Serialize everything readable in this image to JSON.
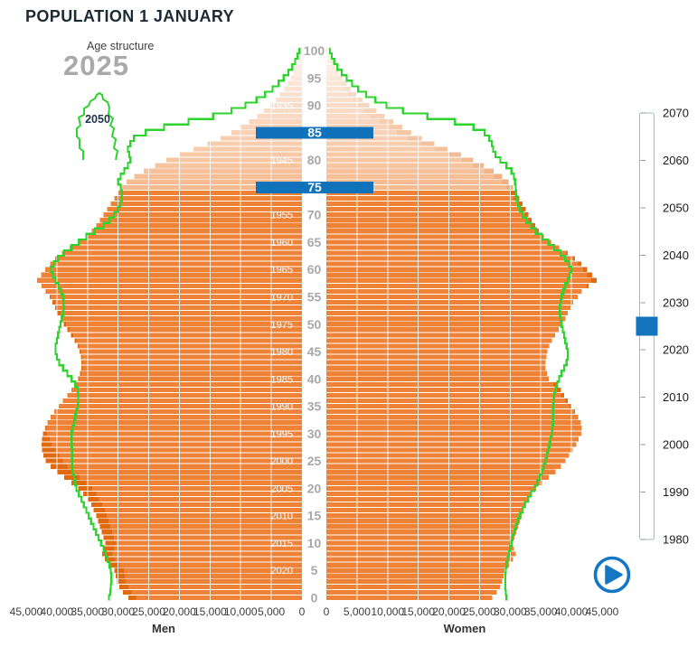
{
  "header": {
    "title": "POPULATION 1 JANUARY",
    "subtitle": "Age structure",
    "year_display": "2025"
  },
  "projection_badge": {
    "label": "2050"
  },
  "axis": {
    "men_label": "Men",
    "women_label": "Women",
    "x_max": 45000,
    "x_tick_values": [
      0,
      5000,
      10000,
      15000,
      20000,
      25000,
      30000,
      35000,
      40000,
      45000
    ],
    "x_tick_labels": [
      "0",
      "5,000",
      "10,000",
      "15,000",
      "20,000",
      "25,000",
      "30,000",
      "35,000",
      "40,000",
      "45,000"
    ],
    "age_min": 0,
    "age_max": 100,
    "age_tick_step": 5
  },
  "age_markers": [
    {
      "age": 85,
      "label": "85"
    },
    {
      "age": 75,
      "label": "75"
    }
  ],
  "birth_year_labels": [
    1935,
    1940,
    1945,
    1950,
    1955,
    1960,
    1965,
    1970,
    1975,
    1980,
    1985,
    1990,
    1995,
    2000,
    2005,
    2010,
    2015,
    2020
  ],
  "slider": {
    "min_year": 1980,
    "max_year": 2070,
    "selected_year": 2025,
    "tick_years": [
      1980,
      1990,
      2000,
      2010,
      2020,
      2030,
      2040,
      2050,
      2060,
      2070
    ]
  },
  "icons": {
    "play": "▶"
  },
  "colors": {
    "bar": "#ee8236",
    "bar_surplus": "#e1690f",
    "projection_outline": "#2fd32f",
    "highlight_blue": "#0f72ba",
    "slider_handle": "#1373bd",
    "play_blue": "#1377c6",
    "title_text": "#1c2b33",
    "muted_year": "#a9a9a9",
    "age_label": "#a8a8a8",
    "axis_text": "#3d3d3d"
  },
  "chart_data": {
    "type": "bar",
    "variant": "population-pyramid",
    "title": "POPULATION 1 JANUARY",
    "age_of_index": "index = single year of age, 0 to 100",
    "xlim": [
      0,
      45000
    ],
    "highlight_ages": [
      85,
      75
    ],
    "legend": "green outline = 2050 projection",
    "series": [
      {
        "name": "Men 2025",
        "values": [
          28300,
          29200,
          29800,
          30200,
          30400,
          30600,
          31400,
          32200,
          32600,
          32300,
          32100,
          32400,
          32700,
          33000,
          33300,
          33600,
          34000,
          34400,
          35000,
          35700,
          36500,
          37600,
          38800,
          40000,
          41000,
          41800,
          42200,
          42400,
          42500,
          42400,
          42300,
          41900,
          41500,
          41000,
          40400,
          39700,
          39000,
          38300,
          37600,
          37000,
          36500,
          36200,
          36000,
          36000,
          36100,
          36300,
          36600,
          37100,
          37700,
          38300,
          38900,
          39400,
          39900,
          40300,
          40700,
          41200,
          41800,
          42500,
          43200,
          42600,
          41900,
          41100,
          40300,
          39200,
          37900,
          36500,
          35200,
          34300,
          33600,
          33000,
          32400,
          31800,
          31200,
          30600,
          30000,
          29400,
          28600,
          27400,
          25800,
          24000,
          22100,
          20000,
          17700,
          15400,
          13300,
          11500,
          10000,
          8600,
          7300,
          6200,
          5200,
          4300,
          3600,
          2900,
          2300,
          1800,
          1400,
          1000,
          700,
          500,
          300
        ]
      },
      {
        "name": "Women 2025",
        "values": [
          27100,
          27800,
          28300,
          28700,
          28900,
          29100,
          29800,
          30500,
          30900,
          30600,
          30400,
          30700,
          31000,
          31300,
          31600,
          31900,
          32200,
          32600,
          33100,
          33600,
          34200,
          35200,
          36300,
          37400,
          38300,
          39000,
          39600,
          40200,
          40800,
          41200,
          41600,
          41700,
          41500,
          41100,
          40600,
          40000,
          39400,
          38800,
          38300,
          37800,
          36300,
          36000,
          35800,
          35800,
          35900,
          36100,
          36400,
          36800,
          37300,
          37900,
          38500,
          39000,
          39400,
          39800,
          40300,
          41000,
          41700,
          42800,
          44100,
          43400,
          42600,
          41600,
          40600,
          39400,
          38000,
          36700,
          35500,
          34700,
          34100,
          33500,
          33000,
          32500,
          32000,
          31500,
          31000,
          30500,
          29700,
          28700,
          27300,
          25700,
          24000,
          22000,
          19800,
          17600,
          15600,
          13900,
          12400,
          10900,
          9500,
          8200,
          7000,
          5900,
          4900,
          4000,
          3300,
          2600,
          2000,
          1500,
          1100,
          800,
          600
        ]
      },
      {
        "name": "Men 2050 projection",
        "values": [
          31500,
          31300,
          31200,
          31100,
          31100,
          31200,
          31400,
          31700,
          32000,
          32400,
          32800,
          33200,
          33600,
          34000,
          34400,
          34800,
          35200,
          35600,
          36000,
          36400,
          36800,
          37000,
          37200,
          37400,
          37500,
          37500,
          37500,
          37500,
          37600,
          37600,
          37600,
          37400,
          37200,
          37000,
          36800,
          36600,
          36500,
          36500,
          36600,
          37000,
          37600,
          38300,
          39000,
          39600,
          40000,
          40200,
          40200,
          40000,
          39800,
          39600,
          39400,
          39200,
          39000,
          38900,
          38900,
          39000,
          39300,
          39700,
          40200,
          40600,
          41000,
          40500,
          39800,
          38800,
          37600,
          36400,
          35200,
          33800,
          32400,
          31400,
          30600,
          30000,
          29600,
          29400,
          29400,
          29600,
          30000,
          29600,
          29000,
          28400,
          28000,
          28200,
          28400,
          28000,
          27400,
          25500,
          22500,
          18500,
          14500,
          11500,
          9200,
          7400,
          6000,
          4800,
          3800,
          3000,
          2200,
          1600,
          1100,
          700,
          400
        ]
      },
      {
        "name": "Women 2050 projection",
        "values": [
          29400,
          29300,
          29200,
          29200,
          29200,
          29300,
          29400,
          29600,
          29800,
          30000,
          30200,
          30400,
          30700,
          31000,
          31300,
          31600,
          32000,
          32400,
          32900,
          33400,
          34000,
          34400,
          34800,
          35200,
          35500,
          35800,
          36000,
          36200,
          36400,
          36600,
          36800,
          36900,
          37000,
          37000,
          37000,
          37000,
          37100,
          37200,
          37400,
          37700,
          38000,
          38400,
          38800,
          39200,
          39400,
          39400,
          39200,
          39000,
          38800,
          38600,
          38400,
          38200,
          38100,
          38100,
          38200,
          38400,
          38700,
          39000,
          39400,
          39700,
          40000,
          39600,
          39000,
          38200,
          37200,
          36200,
          35200,
          34200,
          33400,
          32600,
          32000,
          31600,
          31300,
          31100,
          31000,
          30900,
          30800,
          30600,
          30200,
          29400,
          28400,
          27600,
          27200,
          27000,
          26600,
          25800,
          24000,
          21000,
          16500,
          12500,
          9800,
          8000,
          6500,
          5200,
          4200,
          3300,
          2500,
          1800,
          1300,
          900,
          600
        ]
      }
    ]
  }
}
